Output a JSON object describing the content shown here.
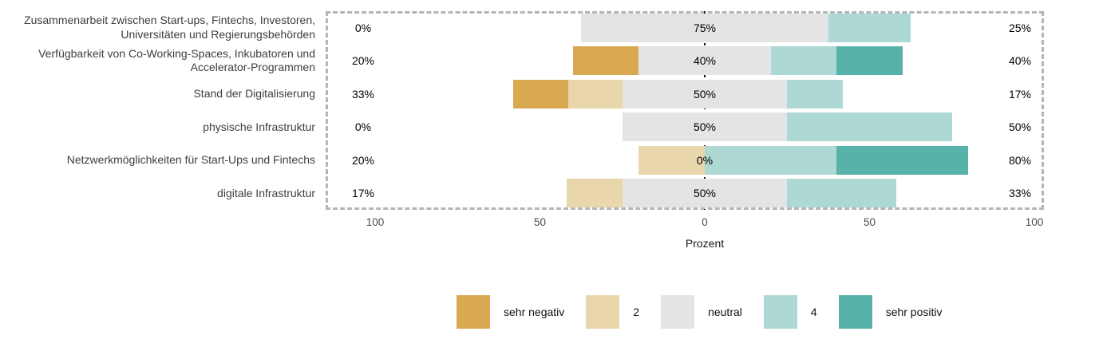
{
  "chart_data": {
    "type": "bar",
    "variant": "diverging-stacked-likert",
    "title": "",
    "xlabel": "Prozent",
    "ylabel": "",
    "grid": false,
    "legend_position": "bottom",
    "axis_range": [
      -115,
      103
    ],
    "x_ticks": [
      {
        "value": -100,
        "label": "100"
      },
      {
        "value": -50,
        "label": "50"
      },
      {
        "value": 0,
        "label": "0"
      },
      {
        "value": 50,
        "label": "50"
      },
      {
        "value": 100,
        "label": "100"
      }
    ],
    "series_order": [
      "sehr negativ",
      "2",
      "neutral",
      "4",
      "sehr positiv"
    ],
    "colors": [
      "#d8a951",
      "#e9d6aa",
      "#e4e4e4",
      "#aed8d3",
      "#57b2a9"
    ],
    "rows": [
      {
        "category": "Zusammenarbeit zwischen Start-ups, Fintechs, Investoren, Universitäten und Regierungsbehörden",
        "values": [
          0,
          0,
          75,
          25,
          0
        ],
        "labels": {
          "negative": "0%",
          "neutral": "75%",
          "positive": "25%"
        }
      },
      {
        "category": "Verfügbarkeit von Co-Working-Spaces, Inkubatoren und Accelerator-Programmen",
        "values": [
          20,
          0,
          40,
          20,
          20
        ],
        "labels": {
          "negative": "20%",
          "neutral": "40%",
          "positive": "40%"
        }
      },
      {
        "category": "Stand der Digitalisierung",
        "values": [
          16.5,
          16.5,
          50,
          17,
          0
        ],
        "labels": {
          "negative": "33%",
          "neutral": "50%",
          "positive": "17%"
        }
      },
      {
        "category": "physische Infrastruktur",
        "values": [
          0,
          0,
          50,
          50,
          0
        ],
        "labels": {
          "negative": "0%",
          "neutral": "50%",
          "positive": "50%"
        }
      },
      {
        "category": "Netzwerkmöglichkeiten für Start-Ups und Fintechs",
        "values": [
          0,
          20,
          0,
          40,
          40
        ],
        "labels": {
          "negative": "20%",
          "neutral": "0%",
          "positive": "80%"
        }
      },
      {
        "category": "digitale Infrastruktur",
        "values": [
          0,
          17,
          50,
          33,
          0
        ],
        "labels": {
          "negative": "17%",
          "neutral": "50%",
          "positive": "33%"
        }
      }
    ],
    "legend": [
      {
        "label": "sehr negativ",
        "color": "#d8a951"
      },
      {
        "label": "2",
        "color": "#e9d6aa"
      },
      {
        "label": "neutral",
        "color": "#e4e4e4"
      },
      {
        "label": "4",
        "color": "#aed8d3"
      },
      {
        "label": "sehr positiv",
        "color": "#57b2a9"
      }
    ]
  }
}
